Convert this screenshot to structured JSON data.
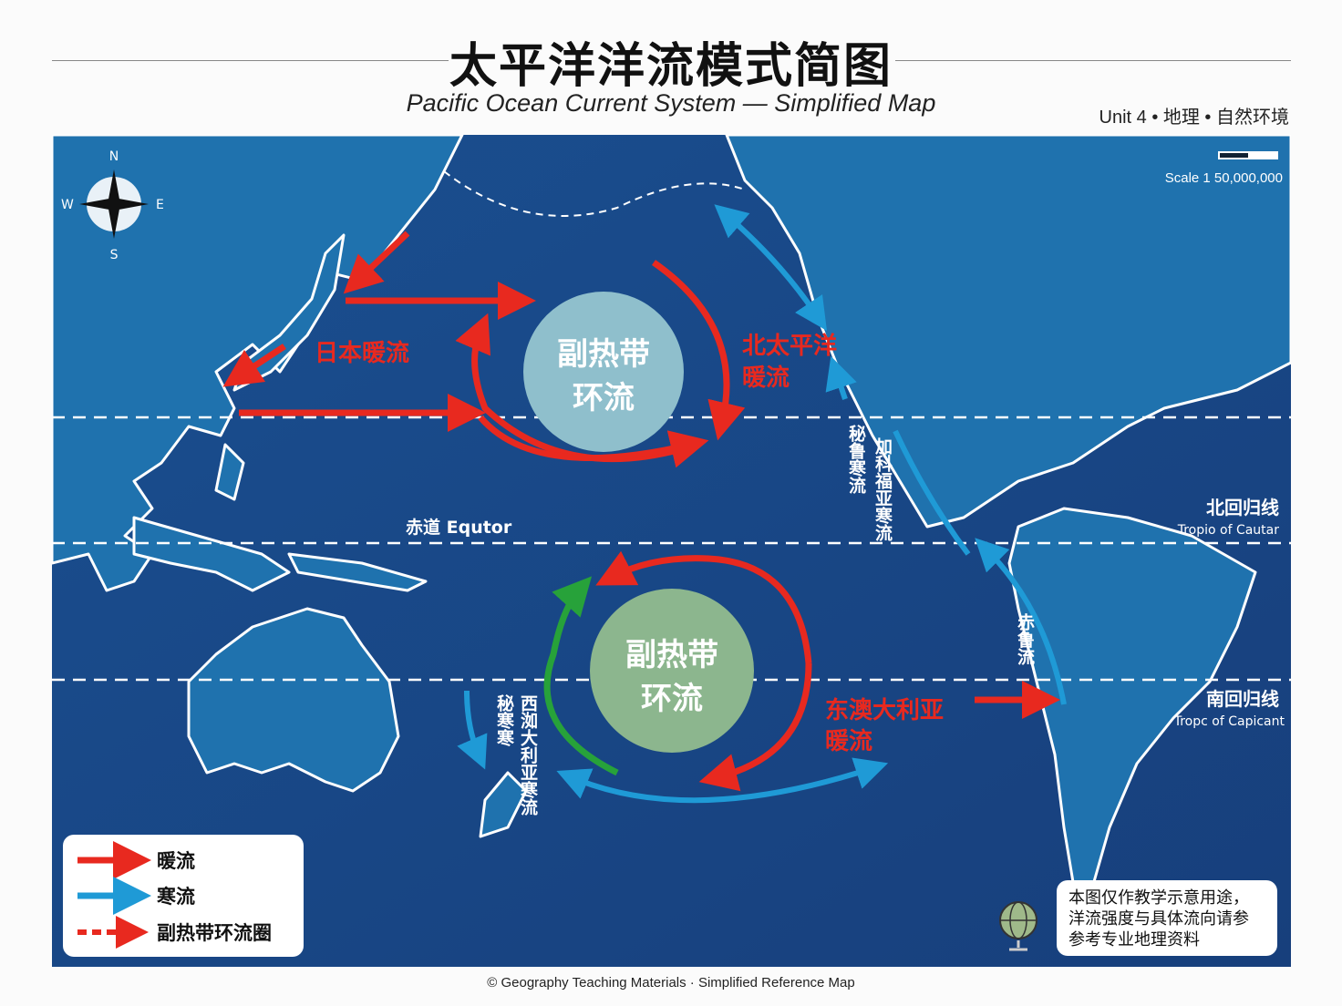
{
  "title": "太平洋洋流模式简图",
  "subtitle": "Pacific Ocean Current System — Simplified Map",
  "unit": "Unit 4 • 地理 • 自然环境",
  "scale": "Scale 1 50,000,000",
  "compass": {
    "n": "N",
    "s": "S",
    "e": "E",
    "w": "W"
  },
  "lines": {
    "equator": "赤道 Equtor",
    "cancer_cn": "北回归线",
    "cancer_en": "Tropio of Cautar",
    "capricorn_cn": "南回归线",
    "capricorn_en": "Tropc of Capicant"
  },
  "gyres": {
    "north": [
      "副热带",
      "环流"
    ],
    "south": [
      "副热带",
      "环流"
    ]
  },
  "currents": {
    "kuroshio": "日本暖流",
    "north_pacific": [
      "北太平洋",
      "暖流"
    ],
    "peru_n": "秘鲁寒流",
    "california": "加科福亚寒流",
    "peru_s": "赤鲁流",
    "east_australia": [
      "东澳大利亚",
      "暖流"
    ],
    "west_aus": "西洳大利亚寒流",
    "peru_w": "秘寒寒"
  },
  "legend": [
    {
      "label": "暖流",
      "color": "#e8291f",
      "style": "solid"
    },
    {
      "label": "寒流",
      "color": "#1f9ad6",
      "style": "solid"
    },
    {
      "label": "副热带环流圈",
      "color": "#e8291f",
      "style": "dashed"
    }
  ],
  "note": [
    "本图仅作教学示意用途，",
    "洋流强度与具体流向请参",
    "参考专业地理资料"
  ],
  "footer": "© Geography Teaching Materials · Simplified Reference Map",
  "colors": {
    "warm": "#e8291f",
    "cold": "#1f9ad6",
    "green": "#27a23a",
    "ocean": "#1b4c8c",
    "land": "#1f72ae"
  }
}
